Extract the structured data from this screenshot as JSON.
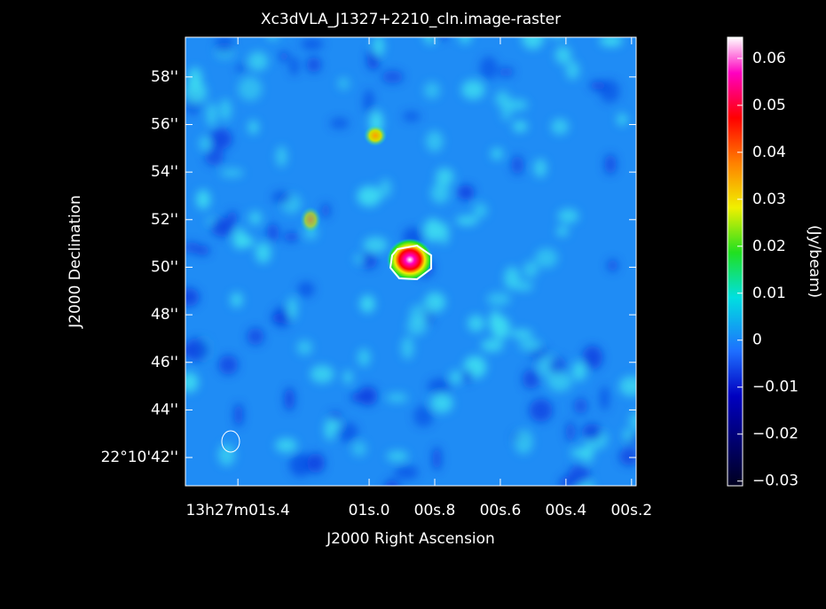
{
  "chart_data": {
    "type": "image",
    "title": "Xc3dVLA_J1327+2210_cln.image-raster",
    "x_label": "J2000 Right Ascension",
    "y_label": "J2000 Declination",
    "colorbar_label": "(Jy/beam)",
    "xlim": [
      1.56,
      0.186
    ],
    "xticks": [
      {
        "value": 1.4,
        "label": "13h27m01s.4"
      },
      {
        "value": 1.0,
        "label": "01s.0"
      },
      {
        "value": 0.8,
        "label": "00s.8"
      },
      {
        "value": 0.6,
        "label": "00s.6"
      },
      {
        "value": 0.4,
        "label": "00s.4"
      },
      {
        "value": 0.2,
        "label": "00s.2"
      }
    ],
    "ylim": [
      40.81,
      59.67
    ],
    "yticks": [
      {
        "value": 42,
        "label": "22°10'42''"
      },
      {
        "value": 44,
        "label": "44''"
      },
      {
        "value": 46,
        "label": "46''"
      },
      {
        "value": 48,
        "label": "48''"
      },
      {
        "value": 50,
        "label": "50''"
      },
      {
        "value": 52,
        "label": "52''"
      },
      {
        "value": 54,
        "label": "54''"
      },
      {
        "value": 56,
        "label": "56''"
      },
      {
        "value": 58,
        "label": "58''"
      }
    ],
    "clim": [
      -0.031,
      0.0645
    ],
    "cticks": [
      {
        "value": -0.03,
        "label": "−0.03"
      },
      {
        "value": -0.02,
        "label": "−0.02"
      },
      {
        "value": -0.01,
        "label": "−0.01"
      },
      0,
      0.01,
      0.02,
      0.03,
      0.04,
      0.05,
      0.06
    ]
  }
}
